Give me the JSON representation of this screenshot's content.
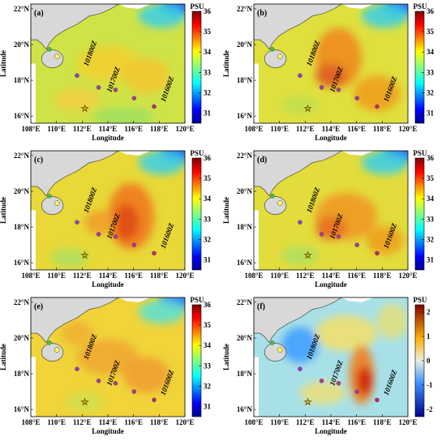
{
  "panels": [
    {
      "label": "(a)",
      "annotations": [
        "101800Z",
        "101700Z",
        "101600Z"
      ],
      "colorbar": "salinity"
    },
    {
      "label": "(b)",
      "annotations": [
        "101800Z",
        "101700Z",
        "101600Z"
      ],
      "colorbar": "salinity"
    },
    {
      "label": "(c)",
      "annotations": [
        "101800Z",
        "101700Z",
        "101600Z"
      ],
      "colorbar": "salinity"
    },
    {
      "label": "(d)",
      "annotations": [
        "101800Z",
        "101700Z",
        "101600Z"
      ],
      "colorbar": "salinity"
    },
    {
      "label": "(e)",
      "annotations": [
        "101800Z",
        "101700Z",
        "101600Z"
      ],
      "colorbar": "salinity"
    },
    {
      "label": "(f)",
      "annotations": [
        "101800Z",
        "101700Z",
        "101600Z"
      ],
      "colorbar": "anomaly"
    }
  ],
  "x_axis": {
    "title": "Longitude",
    "ticks": [
      "108°E",
      "110°E",
      "112°E",
      "114°E",
      "116°E",
      "118°E",
      "120°E"
    ]
  },
  "y_axis": {
    "title": "Latitude",
    "ticks": [
      "22°N",
      "20°N",
      "18°N",
      "16°N"
    ]
  },
  "colorbars": {
    "salinity": {
      "unit": "PSU",
      "range": [
        30.5,
        36
      ],
      "ticks": [
        31,
        32,
        33,
        34,
        35,
        36
      ]
    },
    "anomaly": {
      "unit": "PSU",
      "range": [
        -2.3,
        2.3
      ],
      "ticks": [
        -2,
        -1,
        0,
        1,
        2
      ]
    }
  }
}
